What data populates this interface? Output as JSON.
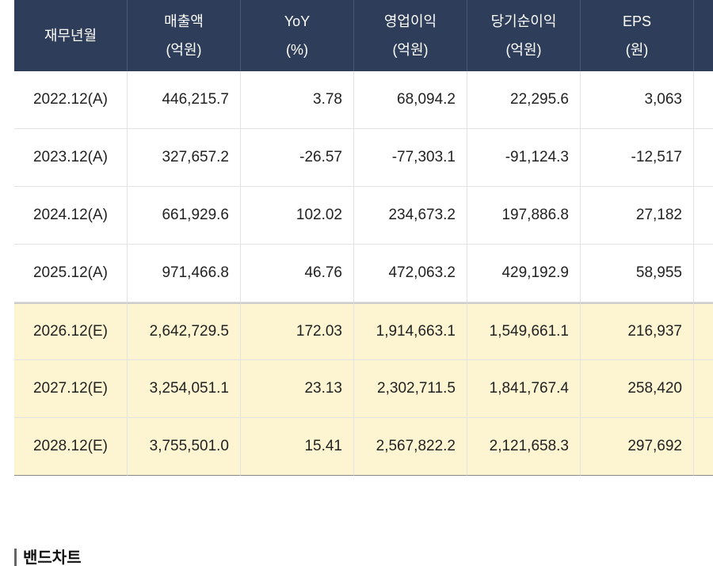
{
  "table": {
    "headers": [
      [
        "재무년월"
      ],
      [
        "매출액",
        "(억원)"
      ],
      [
        "YoY",
        "(%)"
      ],
      [
        "영업이익",
        "(억원)"
      ],
      [
        "당기순이익",
        "(억원)"
      ],
      [
        "EPS",
        "(원)"
      ]
    ],
    "rows": [
      [
        "2022.12(A)",
        "446,215.7",
        "3.78",
        "68,094.2",
        "22,295.6",
        "3,063"
      ],
      [
        "2023.12(A)",
        "327,657.2",
        "-26.57",
        "-77,303.1",
        "-91,124.3",
        "-12,517"
      ],
      [
        "2024.12(A)",
        "661,929.6",
        "102.02",
        "234,673.2",
        "197,886.8",
        "27,182"
      ],
      [
        "2025.12(A)",
        "971,466.8",
        "46.76",
        "472,063.2",
        "429,192.9",
        "58,955"
      ],
      [
        "2026.12(E)",
        "2,642,729.5",
        "172.03",
        "1,914,663.1",
        "1,549,661.1",
        "216,937"
      ],
      [
        "2027.12(E)",
        "3,254,051.1",
        "23.13",
        "2,302,711.5",
        "1,841,767.4",
        "258,420"
      ],
      [
        "2028.12(E)",
        "3,755,501.0",
        "15.41",
        "2,567,822.2",
        "2,121,658.3",
        "297,692"
      ]
    ]
  },
  "section_title": "밴드차트"
}
